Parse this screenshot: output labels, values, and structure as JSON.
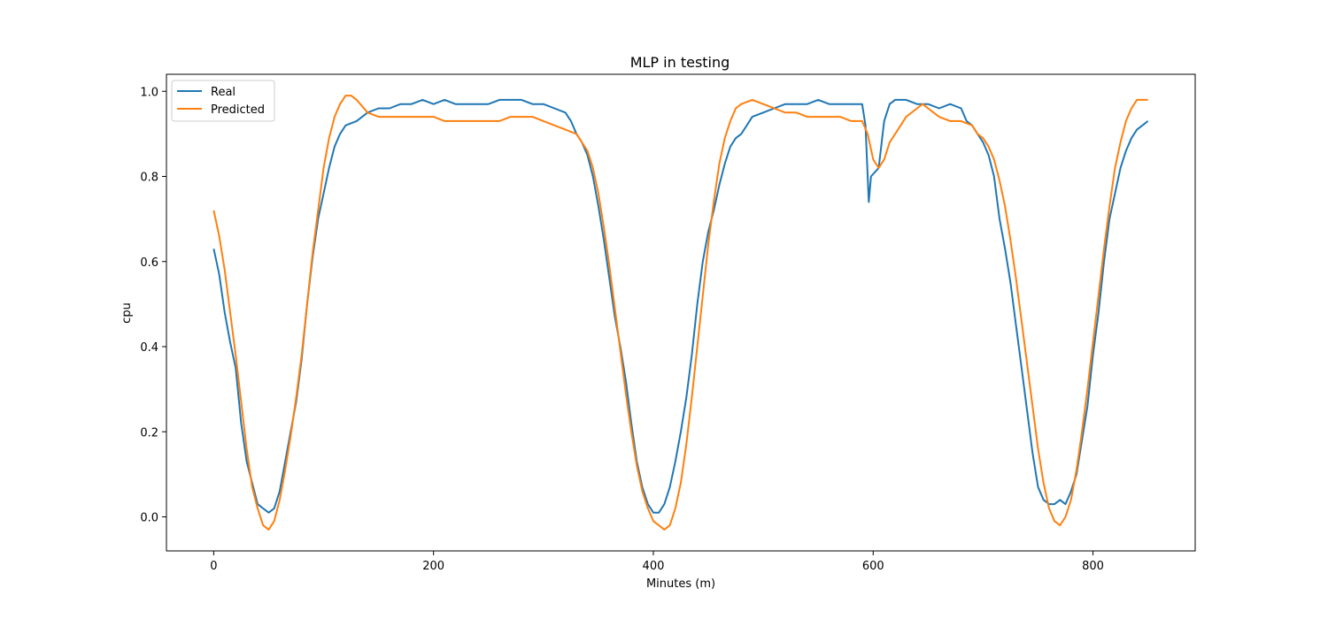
{
  "chart_data": {
    "type": "line",
    "title": "MLP in testing",
    "xlabel": "Minutes (m)",
    "ylabel": "cpu",
    "xlim": [
      -43,
      893
    ],
    "ylim": [
      -0.08,
      1.04
    ],
    "xticks": [
      0,
      200,
      400,
      600,
      800
    ],
    "yticks": [
      0.0,
      0.2,
      0.4,
      0.6,
      0.8,
      1.0
    ],
    "xtick_labels": [
      "0",
      "200",
      "400",
      "600",
      "800"
    ],
    "ytick_labels": [
      "0.0",
      "0.2",
      "0.4",
      "0.6",
      "0.8",
      "1.0"
    ],
    "grid": false,
    "legend_position": "top-left",
    "series": [
      {
        "name": "Real",
        "color": "#1f77b4",
        "points": [
          [
            0,
            0.63
          ],
          [
            5,
            0.57
          ],
          [
            10,
            0.48
          ],
          [
            15,
            0.41
          ],
          [
            20,
            0.35
          ],
          [
            25,
            0.22
          ],
          [
            30,
            0.13
          ],
          [
            35,
            0.08
          ],
          [
            40,
            0.03
          ],
          [
            45,
            0.02
          ],
          [
            50,
            0.01
          ],
          [
            55,
            0.02
          ],
          [
            60,
            0.06
          ],
          [
            65,
            0.13
          ],
          [
            70,
            0.2
          ],
          [
            75,
            0.27
          ],
          [
            80,
            0.37
          ],
          [
            85,
            0.5
          ],
          [
            90,
            0.61
          ],
          [
            95,
            0.7
          ],
          [
            100,
            0.76
          ],
          [
            105,
            0.82
          ],
          [
            110,
            0.87
          ],
          [
            115,
            0.9
          ],
          [
            120,
            0.92
          ],
          [
            130,
            0.93
          ],
          [
            140,
            0.95
          ],
          [
            150,
            0.96
          ],
          [
            160,
            0.96
          ],
          [
            170,
            0.97
          ],
          [
            180,
            0.97
          ],
          [
            190,
            0.98
          ],
          [
            200,
            0.97
          ],
          [
            210,
            0.98
          ],
          [
            220,
            0.97
          ],
          [
            230,
            0.97
          ],
          [
            240,
            0.97
          ],
          [
            250,
            0.97
          ],
          [
            260,
            0.98
          ],
          [
            270,
            0.98
          ],
          [
            280,
            0.98
          ],
          [
            290,
            0.97
          ],
          [
            300,
            0.97
          ],
          [
            310,
            0.96
          ],
          [
            320,
            0.95
          ],
          [
            325,
            0.93
          ],
          [
            330,
            0.9
          ],
          [
            335,
            0.88
          ],
          [
            340,
            0.85
          ],
          [
            345,
            0.8
          ],
          [
            350,
            0.73
          ],
          [
            355,
            0.65
          ],
          [
            360,
            0.56
          ],
          [
            365,
            0.47
          ],
          [
            370,
            0.4
          ],
          [
            375,
            0.32
          ],
          [
            380,
            0.22
          ],
          [
            385,
            0.13
          ],
          [
            390,
            0.07
          ],
          [
            395,
            0.03
          ],
          [
            400,
            0.01
          ],
          [
            405,
            0.01
          ],
          [
            410,
            0.03
          ],
          [
            415,
            0.07
          ],
          [
            420,
            0.13
          ],
          [
            425,
            0.2
          ],
          [
            430,
            0.28
          ],
          [
            435,
            0.38
          ],
          [
            440,
            0.5
          ],
          [
            445,
            0.6
          ],
          [
            450,
            0.67
          ],
          [
            455,
            0.72
          ],
          [
            460,
            0.78
          ],
          [
            465,
            0.83
          ],
          [
            470,
            0.87
          ],
          [
            475,
            0.89
          ],
          [
            480,
            0.9
          ],
          [
            485,
            0.92
          ],
          [
            490,
            0.94
          ],
          [
            500,
            0.95
          ],
          [
            510,
            0.96
          ],
          [
            520,
            0.97
          ],
          [
            530,
            0.97
          ],
          [
            540,
            0.97
          ],
          [
            550,
            0.98
          ],
          [
            560,
            0.97
          ],
          [
            570,
            0.97
          ],
          [
            580,
            0.97
          ],
          [
            590,
            0.97
          ],
          [
            593,
            0.92
          ],
          [
            596,
            0.74
          ],
          [
            598,
            0.8
          ],
          [
            605,
            0.82
          ],
          [
            610,
            0.93
          ],
          [
            615,
            0.97
          ],
          [
            620,
            0.98
          ],
          [
            630,
            0.98
          ],
          [
            640,
            0.97
          ],
          [
            650,
            0.97
          ],
          [
            660,
            0.96
          ],
          [
            670,
            0.97
          ],
          [
            680,
            0.96
          ],
          [
            685,
            0.93
          ],
          [
            690,
            0.92
          ],
          [
            695,
            0.9
          ],
          [
            700,
            0.88
          ],
          [
            705,
            0.85
          ],
          [
            710,
            0.8
          ],
          [
            715,
            0.7
          ],
          [
            720,
            0.63
          ],
          [
            725,
            0.55
          ],
          [
            730,
            0.45
          ],
          [
            735,
            0.35
          ],
          [
            740,
            0.25
          ],
          [
            745,
            0.15
          ],
          [
            750,
            0.07
          ],
          [
            755,
            0.04
          ],
          [
            760,
            0.03
          ],
          [
            765,
            0.03
          ],
          [
            770,
            0.04
          ],
          [
            775,
            0.03
          ],
          [
            780,
            0.06
          ],
          [
            785,
            0.1
          ],
          [
            790,
            0.18
          ],
          [
            795,
            0.26
          ],
          [
            800,
            0.38
          ],
          [
            805,
            0.48
          ],
          [
            810,
            0.6
          ],
          [
            815,
            0.7
          ],
          [
            820,
            0.76
          ],
          [
            825,
            0.82
          ],
          [
            830,
            0.86
          ],
          [
            835,
            0.89
          ],
          [
            840,
            0.91
          ],
          [
            845,
            0.92
          ],
          [
            850,
            0.93
          ]
        ]
      },
      {
        "name": "Predicted",
        "color": "#ff7f0e",
        "points": [
          [
            0,
            0.72
          ],
          [
            5,
            0.66
          ],
          [
            10,
            0.58
          ],
          [
            15,
            0.48
          ],
          [
            20,
            0.38
          ],
          [
            25,
            0.27
          ],
          [
            30,
            0.16
          ],
          [
            35,
            0.07
          ],
          [
            40,
            0.02
          ],
          [
            45,
            -0.02
          ],
          [
            50,
            -0.03
          ],
          [
            55,
            -0.01
          ],
          [
            60,
            0.04
          ],
          [
            65,
            0.11
          ],
          [
            70,
            0.19
          ],
          [
            75,
            0.28
          ],
          [
            80,
            0.38
          ],
          [
            85,
            0.5
          ],
          [
            90,
            0.62
          ],
          [
            95,
            0.72
          ],
          [
            100,
            0.82
          ],
          [
            105,
            0.89
          ],
          [
            110,
            0.94
          ],
          [
            115,
            0.97
          ],
          [
            120,
            0.99
          ],
          [
            125,
            0.99
          ],
          [
            130,
            0.98
          ],
          [
            140,
            0.95
          ],
          [
            150,
            0.94
          ],
          [
            160,
            0.94
          ],
          [
            170,
            0.94
          ],
          [
            180,
            0.94
          ],
          [
            190,
            0.94
          ],
          [
            200,
            0.94
          ],
          [
            210,
            0.93
          ],
          [
            220,
            0.93
          ],
          [
            230,
            0.93
          ],
          [
            240,
            0.93
          ],
          [
            250,
            0.93
          ],
          [
            260,
            0.93
          ],
          [
            270,
            0.94
          ],
          [
            280,
            0.94
          ],
          [
            290,
            0.94
          ],
          [
            300,
            0.93
          ],
          [
            310,
            0.92
          ],
          [
            320,
            0.91
          ],
          [
            330,
            0.9
          ],
          [
            335,
            0.88
          ],
          [
            340,
            0.86
          ],
          [
            345,
            0.82
          ],
          [
            350,
            0.76
          ],
          [
            355,
            0.68
          ],
          [
            360,
            0.59
          ],
          [
            365,
            0.49
          ],
          [
            370,
            0.39
          ],
          [
            375,
            0.29
          ],
          [
            380,
            0.2
          ],
          [
            385,
            0.12
          ],
          [
            390,
            0.06
          ],
          [
            395,
            0.02
          ],
          [
            400,
            -0.01
          ],
          [
            405,
            -0.02
          ],
          [
            410,
            -0.03
          ],
          [
            415,
            -0.02
          ],
          [
            420,
            0.02
          ],
          [
            425,
            0.08
          ],
          [
            430,
            0.17
          ],
          [
            435,
            0.28
          ],
          [
            440,
            0.4
          ],
          [
            445,
            0.52
          ],
          [
            450,
            0.64
          ],
          [
            455,
            0.74
          ],
          [
            460,
            0.83
          ],
          [
            465,
            0.89
          ],
          [
            470,
            0.93
          ],
          [
            475,
            0.96
          ],
          [
            480,
            0.97
          ],
          [
            490,
            0.98
          ],
          [
            500,
            0.97
          ],
          [
            510,
            0.96
          ],
          [
            520,
            0.95
          ],
          [
            530,
            0.95
          ],
          [
            540,
            0.94
          ],
          [
            550,
            0.94
          ],
          [
            560,
            0.94
          ],
          [
            570,
            0.94
          ],
          [
            580,
            0.93
          ],
          [
            590,
            0.93
          ],
          [
            595,
            0.9
          ],
          [
            600,
            0.84
          ],
          [
            605,
            0.82
          ],
          [
            610,
            0.84
          ],
          [
            615,
            0.88
          ],
          [
            620,
            0.9
          ],
          [
            625,
            0.92
          ],
          [
            630,
            0.94
          ],
          [
            640,
            0.96
          ],
          [
            645,
            0.97
          ],
          [
            650,
            0.96
          ],
          [
            660,
            0.94
          ],
          [
            670,
            0.93
          ],
          [
            680,
            0.93
          ],
          [
            690,
            0.92
          ],
          [
            695,
            0.9
          ],
          [
            700,
            0.89
          ],
          [
            705,
            0.87
          ],
          [
            710,
            0.84
          ],
          [
            715,
            0.79
          ],
          [
            720,
            0.73
          ],
          [
            725,
            0.65
          ],
          [
            730,
            0.56
          ],
          [
            735,
            0.46
          ],
          [
            740,
            0.36
          ],
          [
            745,
            0.26
          ],
          [
            750,
            0.16
          ],
          [
            755,
            0.08
          ],
          [
            760,
            0.02
          ],
          [
            765,
            -0.01
          ],
          [
            770,
            -0.02
          ],
          [
            775,
            0.0
          ],
          [
            780,
            0.04
          ],
          [
            785,
            0.11
          ],
          [
            790,
            0.2
          ],
          [
            795,
            0.3
          ],
          [
            800,
            0.41
          ],
          [
            805,
            0.52
          ],
          [
            810,
            0.63
          ],
          [
            815,
            0.73
          ],
          [
            820,
            0.82
          ],
          [
            825,
            0.88
          ],
          [
            830,
            0.93
          ],
          [
            835,
            0.96
          ],
          [
            840,
            0.98
          ],
          [
            845,
            0.98
          ],
          [
            850,
            0.98
          ]
        ]
      }
    ]
  }
}
